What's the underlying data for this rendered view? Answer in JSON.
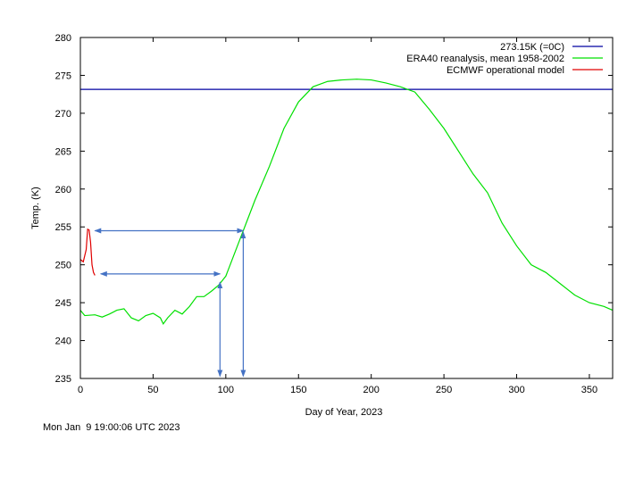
{
  "chart_data": {
    "type": "line",
    "xlabel": "Day of Year, 2023",
    "ylabel": "Temp. (K)",
    "xlim": [
      0,
      366
    ],
    "ylim": [
      235,
      280
    ],
    "xticks": [
      0,
      50,
      100,
      150,
      200,
      250,
      300,
      350
    ],
    "yticks": [
      235,
      240,
      245,
      250,
      255,
      260,
      265,
      270,
      275,
      280
    ],
    "legend_position": "top-right",
    "series": [
      {
        "name": "273.15K (=0C)",
        "color": "#0000a0",
        "x": [
          0,
          366
        ],
        "y": [
          273.15,
          273.15
        ]
      },
      {
        "name": "ERA40 reanalysis, mean 1958-2002",
        "color": "#00e000",
        "x": [
          0,
          3,
          10,
          15,
          20,
          25,
          30,
          35,
          40,
          45,
          50,
          55,
          57,
          60,
          65,
          70,
          75,
          80,
          85,
          90,
          95,
          100,
          105,
          110,
          115,
          120,
          130,
          140,
          150,
          160,
          170,
          180,
          190,
          200,
          210,
          220,
          230,
          240,
          250,
          260,
          270,
          280,
          290,
          300,
          310,
          320,
          330,
          340,
          350,
          360,
          366
        ],
        "y": [
          244,
          243.3,
          243.4,
          243.1,
          243.5,
          244,
          244.2,
          243,
          242.6,
          243.3,
          243.6,
          243,
          242.2,
          243,
          244,
          243.5,
          244.5,
          245.8,
          245.8,
          246.5,
          247.3,
          248.5,
          251,
          253.5,
          256,
          258.5,
          263,
          268,
          271.5,
          273.5,
          274.2,
          274.4,
          274.5,
          274.4,
          274,
          273.5,
          272.8,
          270.5,
          268,
          265,
          262,
          259.5,
          255.5,
          252.5,
          250,
          249,
          247.5,
          246,
          245,
          244.5,
          244
        ]
      },
      {
        "name": "ECMWF operational model",
        "color": "#e00000",
        "x": [
          0,
          2,
          4,
          5,
          6,
          7,
          8,
          9,
          10
        ],
        "y": [
          250.7,
          250.4,
          252,
          254.7,
          254.6,
          253,
          250,
          249,
          248.6
        ]
      }
    ],
    "annotations": [
      {
        "type": "double-arrow",
        "x": [
          10,
          112
        ],
        "y": [
          254.5,
          254.5
        ]
      },
      {
        "type": "double-arrow",
        "x": [
          14,
          96
        ],
        "y": [
          248.8,
          248.8
        ]
      },
      {
        "type": "double-arrow",
        "x": [
          96,
          96
        ],
        "y": [
          247.7,
          235.3
        ]
      },
      {
        "type": "double-arrow",
        "x": [
          112,
          112
        ],
        "y": [
          254.3,
          235.3
        ]
      }
    ],
    "arrow_color": "#4472c4"
  },
  "timestamp": "Mon Jan  9 19:00:06 UTC 2023"
}
